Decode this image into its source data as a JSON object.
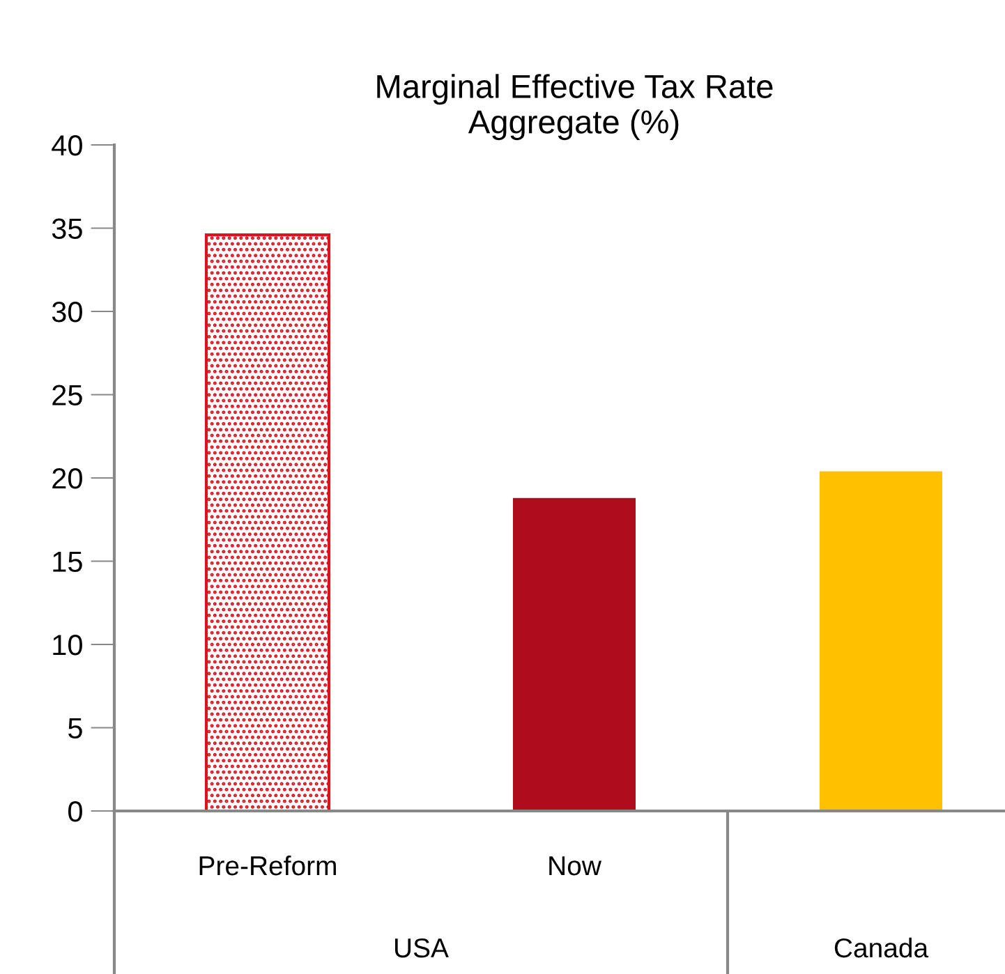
{
  "chart_data": {
    "type": "bar",
    "title": "Marginal Effective Tax Rate\nAggregate (%)",
    "categories": [
      "Pre-Reform",
      "Now",
      null
    ],
    "values": [
      34.6,
      18.8,
      20.4
    ],
    "colors": [
      "#d9141e",
      "#af0c1e",
      "#ffc000"
    ],
    "ylim": [
      0,
      40
    ],
    "yticks": [
      0,
      5,
      10,
      15,
      20,
      25,
      30,
      35,
      40
    ],
    "annotations": [
      "USA",
      "Canada"
    ]
  }
}
